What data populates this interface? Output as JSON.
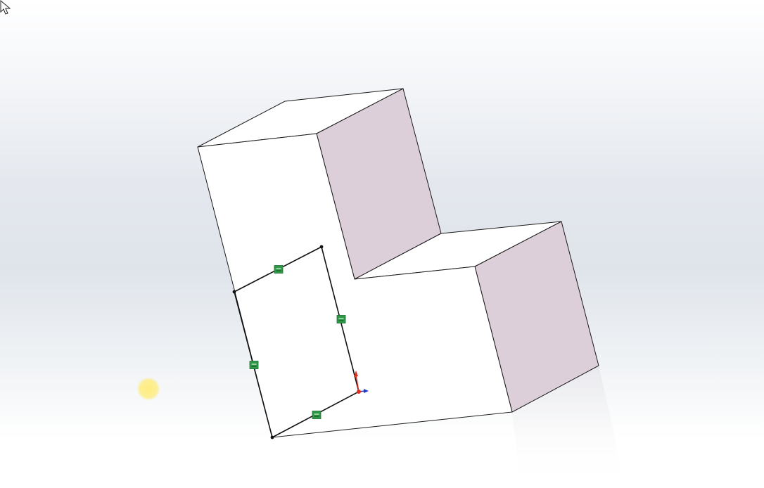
{
  "viewport": {
    "background": "gradient-gray-white",
    "colors": {
      "face_top": "#ffffff",
      "face_front": "#ffffff",
      "face_side": "#dccfd9",
      "edge": "#1a1a1a",
      "sketch_line": "#111111",
      "relation_marker": "#2e9a48",
      "axis_y": "#e03020",
      "axis_x": "#1f3cc8",
      "cursor_halo": "#ffec78"
    }
  },
  "model": {
    "shape": "l-shaped-step-block",
    "sketch": {
      "shape": "rectangle",
      "relation_markers": 4,
      "relation_icon": "horizontal-relation-icon"
    }
  },
  "cursor": {
    "icon": "arrow-cursor-icon",
    "highlight": "yellow-halo"
  }
}
